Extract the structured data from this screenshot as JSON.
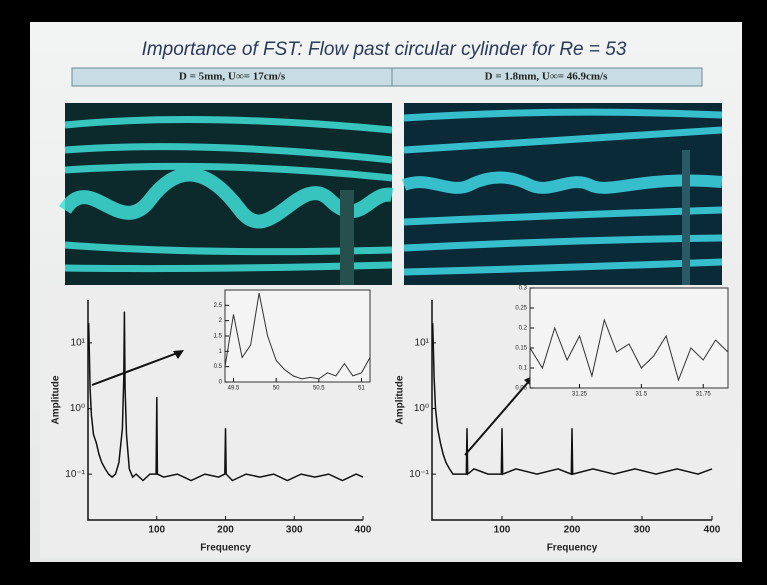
{
  "slide": {
    "title": "Importance of FST: Flow past circular cylinder for  Re = 53",
    "panels": [
      {
        "label": "D = 5mm, U∞= 17cm/s"
      },
      {
        "label": "D = 1.8mm, U∞= 46.9cm/s"
      }
    ]
  },
  "chart_data": [
    {
      "type": "line",
      "x_label": "Frequency",
      "y_label": "Amplitude",
      "log_y": true,
      "color": "#111111",
      "xlim": [
        0,
        400
      ],
      "xticks": [
        100,
        200,
        300,
        400
      ],
      "ylim": [
        0.02,
        45
      ],
      "yticks": [
        {
          "value": 0.1,
          "label": "10⁻¹"
        },
        {
          "value": 1,
          "label": "10⁰"
        },
        {
          "value": 10,
          "label": "10¹"
        }
      ],
      "x": [
        1,
        3,
        5,
        8,
        12,
        16,
        20,
        25,
        30,
        35,
        40,
        45,
        50,
        52,
        53,
        54,
        56,
        60,
        65,
        70,
        80,
        90,
        99,
        100,
        101,
        110,
        130,
        150,
        170,
        190,
        199,
        200,
        201,
        210,
        230,
        250,
        270,
        290,
        310,
        330,
        350,
        370,
        390,
        400
      ],
      "values": [
        20,
        2,
        0.8,
        0.4,
        0.3,
        0.2,
        0.15,
        0.12,
        0.1,
        0.09,
        0.1,
        0.15,
        0.5,
        3,
        30,
        2,
        0.4,
        0.12,
        0.09,
        0.1,
        0.08,
        0.1,
        0.1,
        1.5,
        0.1,
        0.09,
        0.1,
        0.08,
        0.1,
        0.09,
        0.1,
        0.5,
        0.1,
        0.08,
        0.1,
        0.09,
        0.1,
        0.08,
        0.1,
        0.09,
        0.1,
        0.08,
        0.1,
        0.09
      ]
    },
    {
      "type": "line",
      "log_y": false,
      "color": "#333333",
      "xlim": [
        49.4,
        51.1
      ],
      "xticks": [
        49.5,
        50,
        50.5,
        51
      ],
      "ylim": [
        0,
        3
      ],
      "yticks": [
        0,
        0.5,
        1,
        1.5,
        2,
        2.5
      ],
      "x": [
        49.4,
        49.5,
        49.6,
        49.7,
        49.8,
        49.9,
        50,
        50.1,
        50.2,
        50.3,
        50.4,
        50.5,
        50.6,
        50.7,
        50.8,
        50.9,
        51,
        51.1
      ],
      "values": [
        0.5,
        2.2,
        0.8,
        1.2,
        2.9,
        1.5,
        0.7,
        0.4,
        0.2,
        0.1,
        0.15,
        0.1,
        0.3,
        0.2,
        0.6,
        0.2,
        0.3,
        0.8
      ]
    },
    {
      "type": "line",
      "x_label": "Frequency",
      "y_label": "Amplitude",
      "log_y": true,
      "color": "#111111",
      "xlim": [
        0,
        400
      ],
      "xticks": [
        100,
        200,
        300,
        400
      ],
      "ylim": [
        0.02,
        45
      ],
      "yticks": [
        {
          "value": 0.1,
          "label": "10⁻¹"
        },
        {
          "value": 1,
          "label": "10⁰"
        },
        {
          "value": 10,
          "label": "10¹"
        }
      ],
      "x": [
        1,
        3,
        5,
        8,
        12,
        16,
        20,
        25,
        30,
        40,
        49,
        50,
        51,
        60,
        80,
        99,
        100,
        101,
        120,
        150,
        180,
        199,
        200,
        201,
        230,
        260,
        290,
        320,
        350,
        380,
        400
      ],
      "values": [
        20,
        3,
        1,
        0.5,
        0.3,
        0.2,
        0.15,
        0.12,
        0.1,
        0.1,
        0.1,
        0.5,
        0.1,
        0.12,
        0.1,
        0.1,
        0.5,
        0.1,
        0.12,
        0.1,
        0.12,
        0.1,
        0.5,
        0.1,
        0.12,
        0.1,
        0.12,
        0.1,
        0.12,
        0.1,
        0.12
      ]
    },
    {
      "type": "line",
      "log_y": false,
      "color": "#333333",
      "xlim": [
        31.05,
        31.85
      ],
      "xticks": [
        31.25,
        31.5,
        31.75
      ],
      "ylim": [
        0.05,
        0.3
      ],
      "yticks": [
        0.05,
        0.1,
        0.15,
        0.2,
        0.25,
        0.3
      ],
      "x": [
        31.05,
        31.1,
        31.15,
        31.2,
        31.25,
        31.3,
        31.35,
        31.4,
        31.45,
        31.5,
        31.55,
        31.6,
        31.65,
        31.7,
        31.75,
        31.8,
        31.85
      ],
      "values": [
        0.15,
        0.1,
        0.2,
        0.12,
        0.18,
        0.08,
        0.22,
        0.14,
        0.16,
        0.1,
        0.13,
        0.18,
        0.07,
        0.15,
        0.12,
        0.17,
        0.14
      ]
    }
  ]
}
